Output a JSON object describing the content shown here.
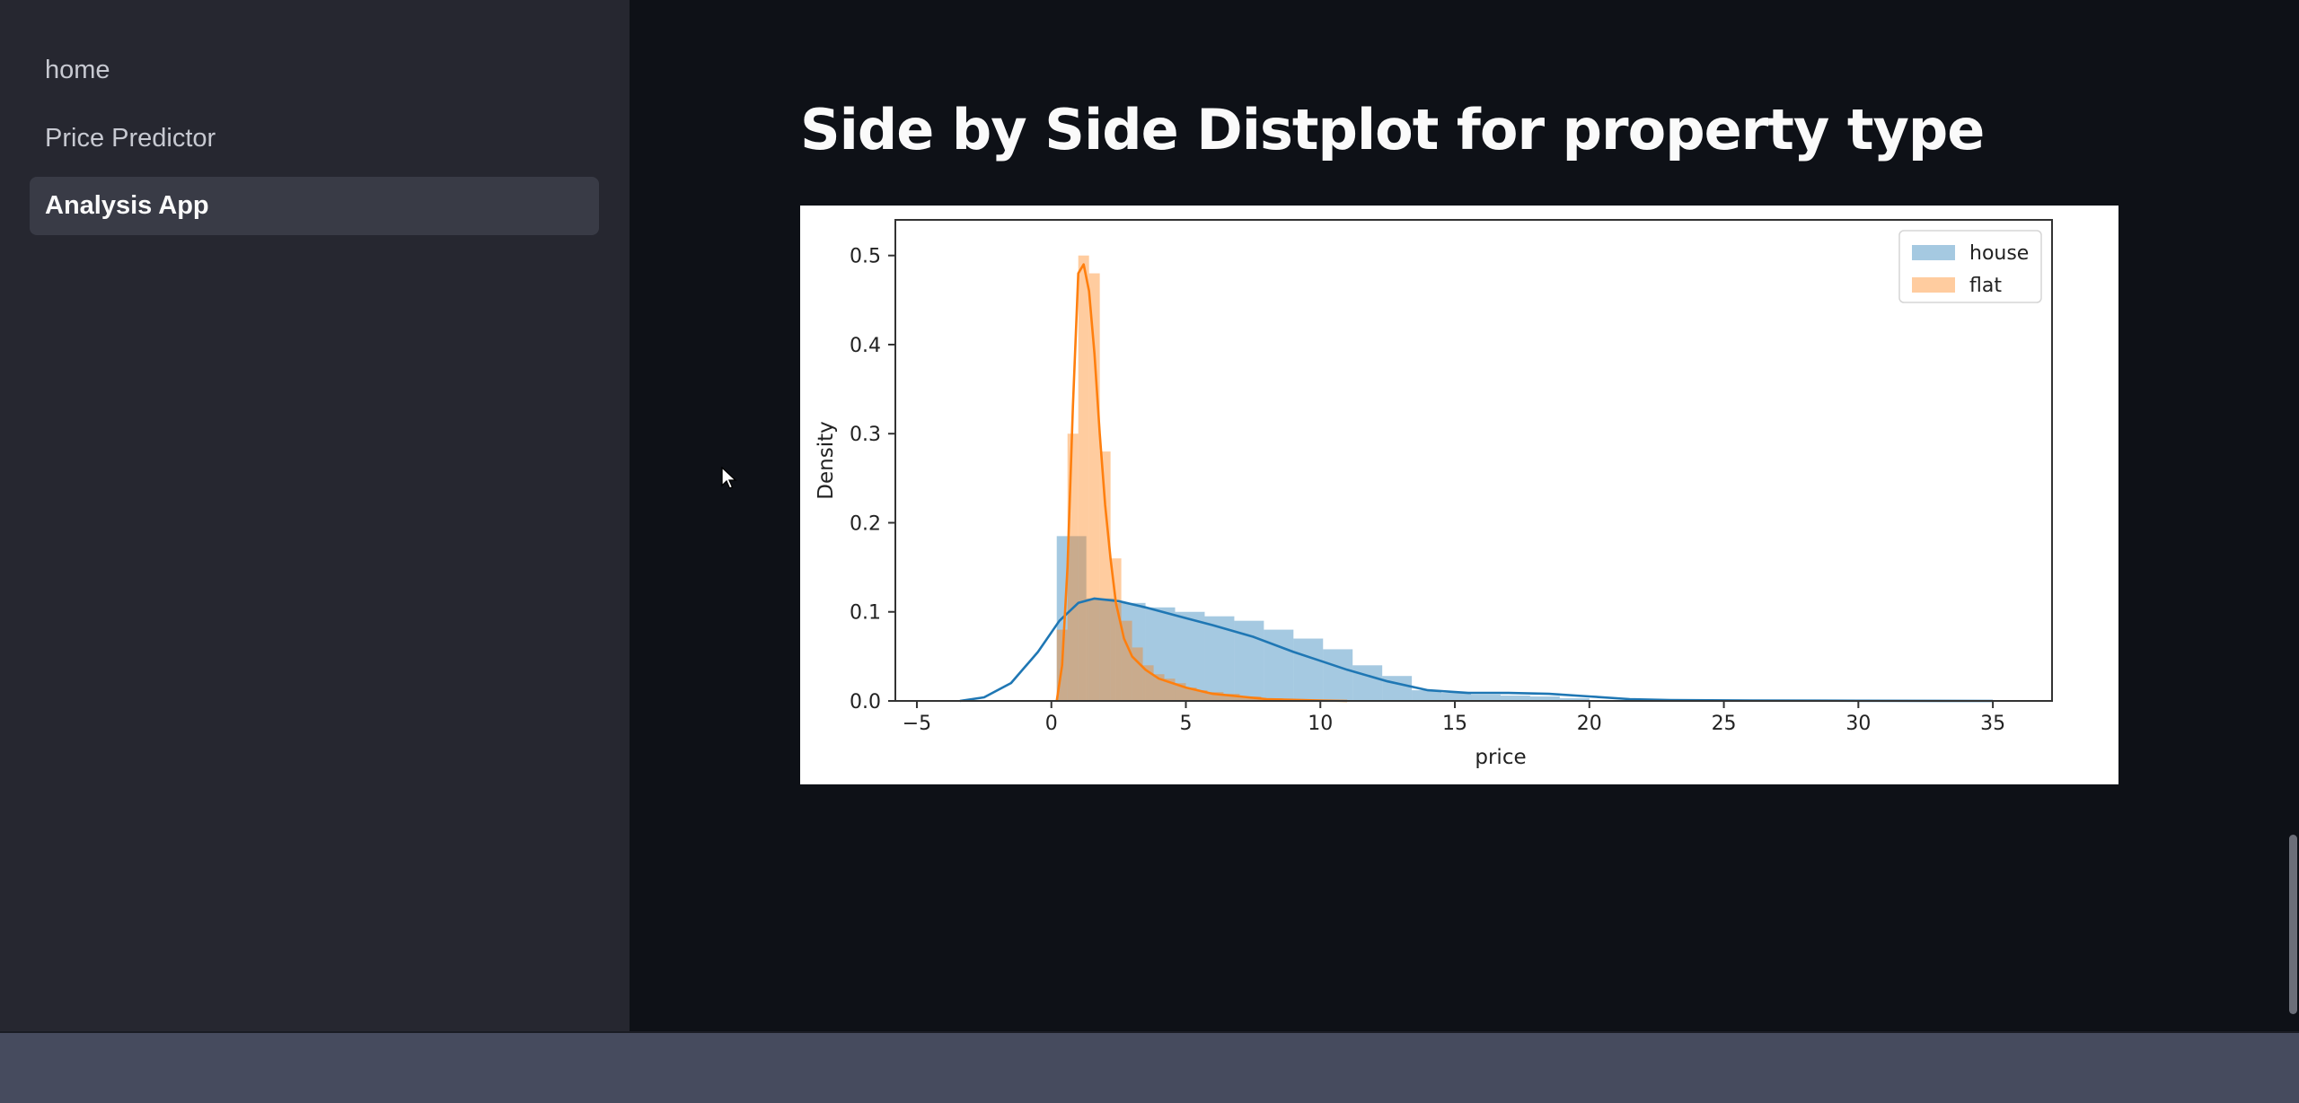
{
  "sidebar": {
    "items": [
      {
        "label": "home",
        "active": false
      },
      {
        "label": "Price Predictor",
        "active": false
      },
      {
        "label": "Analysis App",
        "active": true
      }
    ]
  },
  "main": {
    "title": "Side by Side Distplot for property type"
  },
  "chart_data": {
    "type": "histogram-kde",
    "xlabel": "price",
    "ylabel": "Density",
    "xlim": [
      -5.8,
      37.2
    ],
    "ylim": [
      0,
      0.54
    ],
    "xticks": [
      -5,
      0,
      5,
      10,
      15,
      20,
      25,
      30,
      35
    ],
    "yticks": [
      0.0,
      0.1,
      0.2,
      0.3,
      0.4,
      0.5
    ],
    "xtick_labels": [
      "−5",
      "0",
      "5",
      "10",
      "15",
      "20",
      "25",
      "30",
      "35"
    ],
    "ytick_labels": [
      "0.0",
      "0.1",
      "0.2",
      "0.3",
      "0.4",
      "0.5"
    ],
    "legend_position": "top-right",
    "grid": false,
    "series": [
      {
        "name": "house",
        "color": "#1f77b4",
        "hist": {
          "bin_edges": [
            0.2,
            1.3,
            2.4,
            3.5,
            4.6,
            5.7,
            6.8,
            7.9,
            9.0,
            10.1,
            11.2,
            12.3,
            13.4,
            14.5,
            15.6,
            16.7,
            17.8,
            18.9,
            20.0
          ],
          "heights": [
            0.185,
            0.115,
            0.11,
            0.105,
            0.1,
            0.095,
            0.09,
            0.08,
            0.07,
            0.058,
            0.04,
            0.028,
            0.012,
            0.009,
            0.007,
            0.006,
            0.005,
            0.003
          ]
        },
        "kde": {
          "x": [
            -3.4,
            -2.5,
            -1.5,
            -0.5,
            0.3,
            1.0,
            1.6,
            2.5,
            3.5,
            5.0,
            6.0,
            7.5,
            9.0,
            10.0,
            11.0,
            12.5,
            14.0,
            15.5,
            17.0,
            18.5,
            20.0,
            21.5,
            23.0,
            26.0,
            30.0,
            35.0
          ],
          "y": [
            0.0,
            0.004,
            0.02,
            0.055,
            0.09,
            0.11,
            0.115,
            0.112,
            0.105,
            0.093,
            0.085,
            0.072,
            0.055,
            0.045,
            0.035,
            0.022,
            0.012,
            0.009,
            0.009,
            0.008,
            0.005,
            0.002,
            0.001,
            0.0005,
            0.0002,
            0.0
          ]
        }
      },
      {
        "name": "flat",
        "color": "#ff7f0e",
        "hist": {
          "bin_edges": [
            0.2,
            0.6,
            1.0,
            1.4,
            1.8,
            2.2,
            2.6,
            3.0,
            3.4,
            3.8,
            4.2,
            4.6,
            5.0,
            5.4,
            5.8,
            6.4,
            7.0,
            7.8,
            8.6,
            9.6,
            10.6
          ],
          "heights": [
            0.08,
            0.3,
            0.5,
            0.48,
            0.28,
            0.16,
            0.09,
            0.06,
            0.04,
            0.03,
            0.025,
            0.02,
            0.015,
            0.012,
            0.01,
            0.008,
            0.005,
            0.003,
            0.002,
            0.001
          ]
        },
        "kde": {
          "x": [
            0.2,
            0.4,
            0.6,
            0.8,
            1.0,
            1.2,
            1.4,
            1.6,
            1.8,
            2.0,
            2.2,
            2.4,
            2.7,
            3.0,
            3.5,
            4.0,
            5.0,
            6.0,
            7.0,
            8.0,
            10.0,
            11.0
          ],
          "y": [
            0.0,
            0.04,
            0.15,
            0.33,
            0.48,
            0.49,
            0.46,
            0.39,
            0.3,
            0.22,
            0.16,
            0.11,
            0.07,
            0.05,
            0.035,
            0.025,
            0.015,
            0.008,
            0.005,
            0.002,
            0.0005,
            0.0
          ]
        }
      }
    ]
  }
}
